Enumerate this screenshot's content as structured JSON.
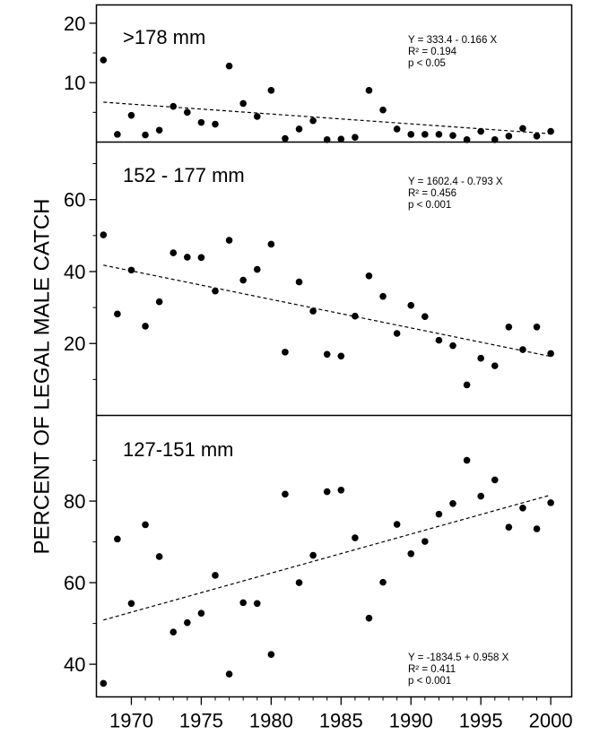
{
  "chart_data": {
    "type": "scatter",
    "ylabel": "PERCENT OF LEGAL MALE CATCH",
    "xlabel": "",
    "xlim": [
      1967.5,
      2001.5
    ],
    "xticks": [
      1970,
      1975,
      1980,
      1985,
      1990,
      1995,
      2000
    ],
    "xtick_labels": [
      "1970",
      "1975",
      "1980",
      "1985",
      "1990",
      "1995",
      "2000"
    ],
    "panels": [
      {
        "title": ">178 mm",
        "ylim": [
          0,
          23
        ],
        "yticks": [
          10,
          20
        ],
        "ytick_labels": [
          "10",
          "20"
        ],
        "trend": {
          "intercept": 333.4,
          "slope": -0.166
        },
        "annotation": {
          "equation": "Y = 333.4 - 0.166 X",
          "r2": "R² = 0.194",
          "p": "p < 0.05"
        },
        "x": [
          1968,
          1969,
          1970,
          1971,
          1972,
          1973,
          1974,
          1975,
          1976,
          1977,
          1978,
          1979,
          1980,
          1981,
          1982,
          1983,
          1984,
          1985,
          1986,
          1987,
          1988,
          1989,
          1990,
          1991,
          1992,
          1993,
          1994,
          1995,
          1996,
          1997,
          1998,
          1999,
          2000
        ],
        "y": [
          13.8,
          1.3,
          4.5,
          1.2,
          2.0,
          6.0,
          5.0,
          3.3,
          3.0,
          12.8,
          6.5,
          4.3,
          8.7,
          0.6,
          2.2,
          3.6,
          0.4,
          0.5,
          0.8,
          8.7,
          5.4,
          2.2,
          1.3,
          1.3,
          1.3,
          1.1,
          0.4,
          1.8,
          0.4,
          1.0,
          2.3,
          1.0,
          1.8
        ]
      },
      {
        "title": "152 - 177 mm",
        "ylim": [
          0,
          76
        ],
        "yticks": [
          20,
          40,
          60
        ],
        "ytick_labels": [
          "20",
          "40",
          "60"
        ],
        "trend": {
          "intercept": 1602.4,
          "slope": -0.793
        },
        "annotation": {
          "equation": "Y = 1602.4 - 0.793 X",
          "r2": "R² = 0.456",
          "p": "p < 0.001"
        },
        "x": [
          1968,
          1969,
          1970,
          1971,
          1972,
          1973,
          1974,
          1975,
          1976,
          1977,
          1978,
          1979,
          1980,
          1981,
          1982,
          1983,
          1984,
          1985,
          1986,
          1987,
          1988,
          1989,
          1990,
          1991,
          1992,
          1993,
          1994,
          1995,
          1996,
          1997,
          1998,
          1999,
          2000
        ],
        "y": [
          50.2,
          28.2,
          40.4,
          24.8,
          31.6,
          45.2,
          44.0,
          43.9,
          34.6,
          48.7,
          37.6,
          40.6,
          47.6,
          17.6,
          37.1,
          29.0,
          17.0,
          16.5,
          27.6,
          38.8,
          33.1,
          22.8,
          30.6,
          27.5,
          20.9,
          19.4,
          8.5,
          15.9,
          13.8,
          24.6,
          18.3,
          24.6,
          17.2
        ]
      },
      {
        "title": "127-151 mm",
        "ylim": [
          32,
          101
        ],
        "yticks": [
          40,
          60,
          80
        ],
        "ytick_labels": [
          "40",
          "60",
          "80"
        ],
        "trend": {
          "intercept": -1834.5,
          "slope": 0.958
        },
        "annotation": {
          "equation": "Y = -1834.5 + 0.958 X",
          "r2": "R² = 0.411",
          "p": "p < 0.001"
        },
        "x": [
          1968,
          1969,
          1970,
          1971,
          1972,
          1973,
          1974,
          1975,
          1976,
          1977,
          1978,
          1979,
          1980,
          1981,
          1982,
          1983,
          1984,
          1985,
          1986,
          1987,
          1988,
          1989,
          1990,
          1991,
          1992,
          1993,
          1994,
          1995,
          1996,
          1997,
          1998,
          1999,
          2000
        ],
        "y": [
          35.3,
          70.7,
          54.9,
          74.2,
          66.4,
          47.9,
          50.2,
          52.5,
          61.8,
          37.6,
          55.1,
          54.9,
          42.4,
          81.7,
          60.0,
          66.7,
          82.3,
          82.7,
          71.0,
          51.3,
          60.1,
          74.3,
          67.1,
          70.1,
          76.8,
          79.4,
          90.0,
          81.2,
          85.2,
          73.6,
          78.3,
          73.2,
          79.6
        ]
      }
    ]
  }
}
